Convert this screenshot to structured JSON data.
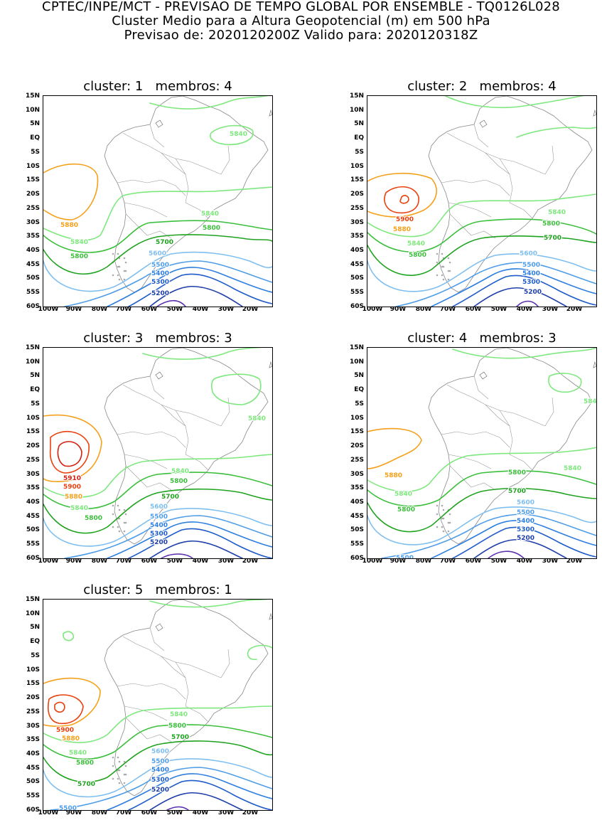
{
  "header": {
    "line1": "CPTEC/INPE/MCT - PREVISAO DE TEMPO GLOBAL POR ENSEMBLE - TQ0126L028",
    "line2": "Cluster Medio para a Altura Geopotencial (m) em 500 hPa",
    "line3": "Previsao de: 2020120200Z    Valido para: 2020120318Z"
  },
  "lat_labels": [
    "15N",
    "10N",
    "5N",
    "EQ",
    "5S",
    "10S",
    "15S",
    "20S",
    "25S",
    "30S",
    "35S",
    "40S",
    "45S",
    "50S",
    "55S",
    "60S"
  ],
  "lon_labels": [
    "100W",
    "90W",
    "80W",
    "70W",
    "60W",
    "50W",
    "40W",
    "30W",
    "20W"
  ],
  "colors": {
    "c5200": "#1f3fa8",
    "c5300": "#1f5cc8",
    "c5400": "#2e7fe0",
    "c5500": "#4f9de8",
    "c5600": "#7fbff0",
    "c5700": "#1fa31f",
    "c5800": "#3cbf3c",
    "c5840": "#7ee87e",
    "c5880": "#f5a01a",
    "c5900": "#e8400e",
    "c5910": "#d32010",
    "c_low": "#5a2fb0",
    "coast": "#888888",
    "border": "#999999"
  },
  "panels": [
    {
      "title": "cluster: 1   membros: 4",
      "labels": [
        {
          "text": "5840",
          "color": "c5840"
        },
        {
          "text": "5880",
          "color": "c5880"
        },
        {
          "text": "5840",
          "color": "c5840"
        },
        {
          "text": "5840",
          "color": "c5840"
        },
        {
          "text": "5800",
          "color": "c5800"
        },
        {
          "text": "5800",
          "color": "c5800"
        },
        {
          "text": "5700",
          "color": "c5700"
        },
        {
          "text": "5600",
          "color": "c5600"
        },
        {
          "text": "5500",
          "color": "c5500"
        },
        {
          "text": "5400",
          "color": "c5400"
        },
        {
          "text": "5300",
          "color": "c5300"
        },
        {
          "text": "5200",
          "color": "c5200"
        }
      ]
    },
    {
      "title": "cluster: 2   membros: 4",
      "labels": [
        {
          "text": "5900",
          "color": "c5900"
        },
        {
          "text": "5880",
          "color": "c5880"
        },
        {
          "text": "5840",
          "color": "c5840"
        },
        {
          "text": "5840",
          "color": "c5840"
        },
        {
          "text": "5800",
          "color": "c5800"
        },
        {
          "text": "5800",
          "color": "c5800"
        },
        {
          "text": "5700",
          "color": "c5700"
        },
        {
          "text": "5600",
          "color": "c5600"
        },
        {
          "text": "5500",
          "color": "c5500"
        },
        {
          "text": "5400",
          "color": "c5400"
        },
        {
          "text": "5300",
          "color": "c5300"
        },
        {
          "text": "5200",
          "color": "c5200"
        }
      ]
    },
    {
      "title": "cluster: 3   membros: 3",
      "labels": [
        {
          "text": "5840",
          "color": "c5840"
        },
        {
          "text": "5910",
          "color": "c5910"
        },
        {
          "text": "5900",
          "color": "c5900"
        },
        {
          "text": "5880",
          "color": "c5880"
        },
        {
          "text": "5840",
          "color": "c5840"
        },
        {
          "text": "5840",
          "color": "c5840"
        },
        {
          "text": "5800",
          "color": "c5800"
        },
        {
          "text": "5800",
          "color": "c5800"
        },
        {
          "text": "5700",
          "color": "c5700"
        },
        {
          "text": "5600",
          "color": "c5600"
        },
        {
          "text": "5500",
          "color": "c5500"
        },
        {
          "text": "5400",
          "color": "c5400"
        },
        {
          "text": "5300",
          "color": "c5300"
        },
        {
          "text": "5200",
          "color": "c5200"
        }
      ]
    },
    {
      "title": "cluster: 4   membros: 3",
      "labels": [
        {
          "text": "5840",
          "color": "c5840"
        },
        {
          "text": "5880",
          "color": "c5880"
        },
        {
          "text": "5840",
          "color": "c5840"
        },
        {
          "text": "5840",
          "color": "c5840"
        },
        {
          "text": "5800",
          "color": "c5800"
        },
        {
          "text": "5800",
          "color": "c5800"
        },
        {
          "text": "5700",
          "color": "c5700"
        },
        {
          "text": "5600",
          "color": "c5600"
        },
        {
          "text": "5500",
          "color": "c5500"
        },
        {
          "text": "5400",
          "color": "c5400"
        },
        {
          "text": "5300",
          "color": "c5300"
        },
        {
          "text": "5200",
          "color": "c5200"
        },
        {
          "text": "5500",
          "color": "c5500"
        }
      ]
    },
    {
      "title": "cluster: 5   membros: 1",
      "labels": [
        {
          "text": "5900",
          "color": "c5900"
        },
        {
          "text": "5880",
          "color": "c5880"
        },
        {
          "text": "5840",
          "color": "c5840"
        },
        {
          "text": "5840",
          "color": "c5840"
        },
        {
          "text": "5800",
          "color": "c5800"
        },
        {
          "text": "5800",
          "color": "c5800"
        },
        {
          "text": "5700",
          "color": "c5700"
        },
        {
          "text": "5700",
          "color": "c5700"
        },
        {
          "text": "5600",
          "color": "c5600"
        },
        {
          "text": "5500",
          "color": "c5500"
        },
        {
          "text": "5400",
          "color": "c5400"
        },
        {
          "text": "5300",
          "color": "c5300"
        },
        {
          "text": "5200",
          "color": "c5200"
        },
        {
          "text": "5500",
          "color": "c5500"
        }
      ]
    }
  ]
}
